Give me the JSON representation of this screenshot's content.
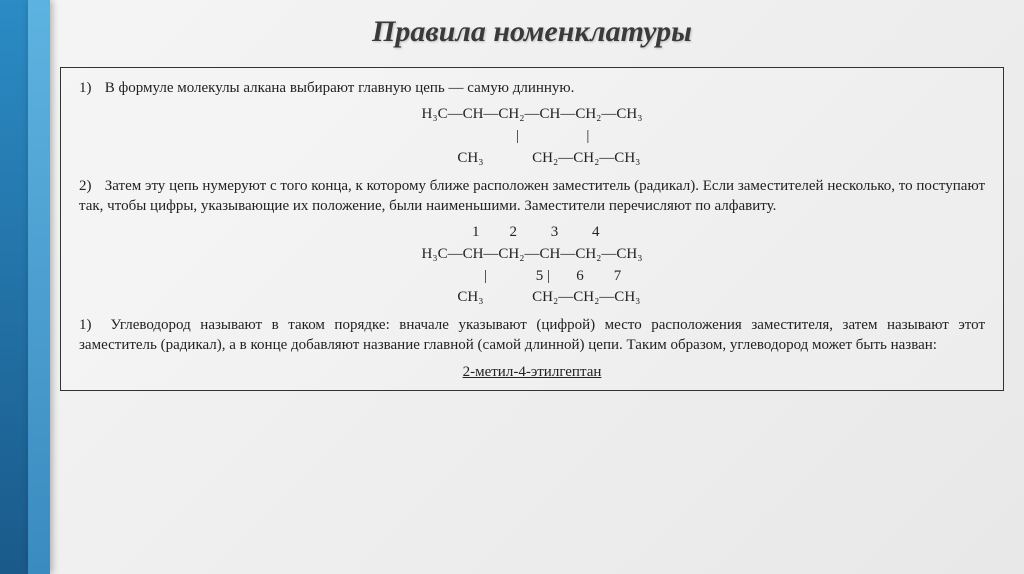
{
  "title": "Правила номенклатуры",
  "rules": {
    "r1_num": "1)",
    "r1_text": "В формуле молекулы алкана выбирают главную цепь — самую длинную.",
    "r2_num": "2)",
    "r2_text": "Затем эту цепь нумеруют с того конца, к которому ближе расположен заместитель (радикал). Если заместителей несколько, то поступают так, чтобы цифры, указывающие их положение, были наименьшими. Заместители перечисляют по алфавиту.",
    "r3_num": "1)",
    "r3_text": "Углеводород называют в таком порядке: вначале указывают (цифрой) место расположения заместителя, затем называют этот заместитель (радикал), а в конце добавляют название главной (самой длинной) цепи. Таким образом, углеводород может быть назван:"
  },
  "formula1": {
    "line1": "H₃C—CH—CH₂—CH—CH₂—CH₃",
    "line2": "           |                  |",
    "line3": "         CH₃             CH₂—CH₂—CH₃"
  },
  "formula2": {
    "nums1": "  1        2         3         4",
    "line1": "H₃C—CH—CH₂—CH—CH₂—CH₃",
    "line2": "           |             5 |       6        7",
    "line3": "         CH₃             CH₂—CH₂—CH₃"
  },
  "final_name": "2-метил-4-этилгептан",
  "colors": {
    "accent_dark": "#2b8bc4",
    "accent_light": "#5db3e0",
    "text": "#222222",
    "border": "#333333"
  }
}
